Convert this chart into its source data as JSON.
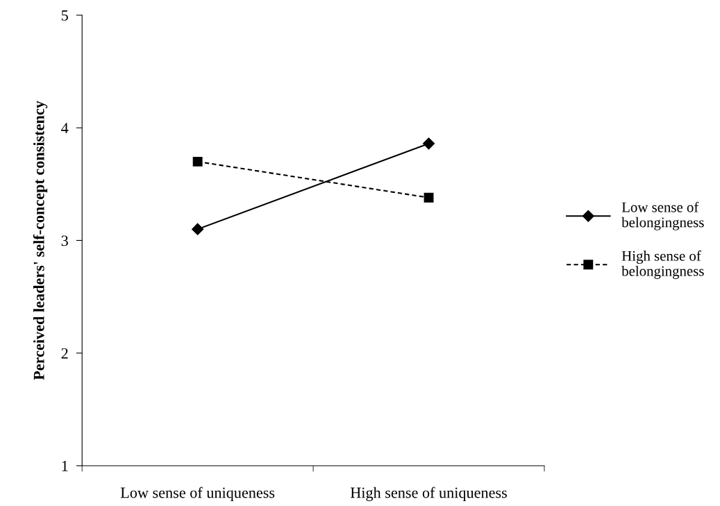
{
  "chart_data": {
    "type": "line",
    "ylabel": "Perceived leaders' self-concept consistency",
    "categories": [
      "Low sense of uniqueness",
      "High sense of uniqueness"
    ],
    "series": [
      {
        "name": "Low sense of\nbelongingness",
        "color": "#000000",
        "values": [
          3.1,
          3.86
        ],
        "marker": "diamond",
        "line_style": "solid"
      },
      {
        "name": "High sense of\nbelongingness",
        "color": "#000000",
        "values": [
          3.7,
          3.38
        ],
        "marker": "square",
        "line_style": "dashed"
      }
    ],
    "ylim": [
      1,
      5
    ],
    "yticks": [
      1,
      2,
      3,
      4,
      5
    ],
    "grid": false,
    "legend": "right"
  }
}
